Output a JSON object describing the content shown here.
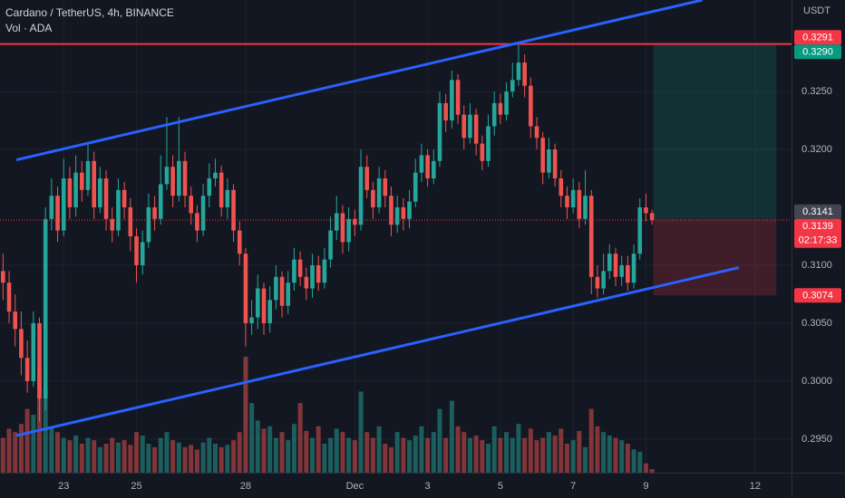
{
  "chart_data": {
    "type": "candlestick",
    "title": "Cardano / TetherUS, 4h, BINANCE",
    "volume_label": "Vol · ADA",
    "currency": "USDT",
    "up_color": "#26a69a",
    "down_color": "#ef5350",
    "open": [
      0.3095,
      0.3085,
      0.306,
      0.3045,
      0.302,
      0.3,
      0.305,
      0.2985,
      0.314,
      0.316,
      0.313,
      0.3175,
      0.315,
      0.318,
      0.3165,
      0.319,
      0.315,
      0.3175,
      0.314,
      0.313,
      0.3165,
      0.315,
      0.3125,
      0.31,
      0.312,
      0.315,
      0.314,
      0.317,
      0.3185,
      0.316,
      0.319,
      0.316,
      0.3145,
      0.313,
      0.316,
      0.3175,
      0.318,
      0.315,
      0.3165,
      0.313,
      0.311,
      0.305,
      0.3055,
      0.308,
      0.305,
      0.307,
      0.309,
      0.3065,
      0.3085,
      0.3105,
      0.309,
      0.308,
      0.31,
      0.3085,
      0.3105,
      0.313,
      0.3145,
      0.312,
      0.314,
      0.3135,
      0.3185,
      0.3165,
      0.315,
      0.3175,
      0.316,
      0.3135,
      0.315,
      0.314,
      0.3155,
      0.318,
      0.3195,
      0.3175,
      0.319,
      0.324,
      0.3225,
      0.326,
      0.323,
      0.321,
      0.323,
      0.3205,
      0.319,
      0.322,
      0.324,
      0.323,
      0.325,
      0.326,
      0.3275,
      0.3255,
      0.322,
      0.321,
      0.318,
      0.32,
      0.3175,
      0.316,
      0.315,
      0.3165,
      0.314,
      0.316,
      0.309,
      0.308,
      0.3095,
      0.311,
      0.309,
      0.31,
      0.3085,
      0.311,
      0.315,
      0.3145
    ],
    "high": [
      0.311,
      0.3095,
      0.3075,
      0.306,
      0.3035,
      0.306,
      0.3055,
      0.315,
      0.3175,
      0.3168,
      0.3192,
      0.3185,
      0.3195,
      0.319,
      0.3205,
      0.3198,
      0.3185,
      0.3182,
      0.315,
      0.3175,
      0.3172,
      0.3158,
      0.3132,
      0.313,
      0.3162,
      0.316,
      0.3195,
      0.3228,
      0.3195,
      0.3228,
      0.3198,
      0.3168,
      0.3152,
      0.317,
      0.3188,
      0.3192,
      0.3186,
      0.3175,
      0.317,
      0.3138,
      0.3115,
      0.307,
      0.3092,
      0.3085,
      0.3082,
      0.31,
      0.3095,
      0.3095,
      0.3115,
      0.3112,
      0.3098,
      0.311,
      0.3108,
      0.3115,
      0.3142,
      0.316,
      0.3152,
      0.315,
      0.3148,
      0.32,
      0.3195,
      0.3172,
      0.3185,
      0.3182,
      0.3168,
      0.316,
      0.3158,
      0.3165,
      0.3192,
      0.3205,
      0.32,
      0.32,
      0.325,
      0.3248,
      0.3268,
      0.3265,
      0.3238,
      0.324,
      0.3235,
      0.3212,
      0.323,
      0.325,
      0.3248,
      0.3258,
      0.3275,
      0.329,
      0.3282,
      0.3262,
      0.3228,
      0.3215,
      0.321,
      0.3205,
      0.3182,
      0.3168,
      0.3175,
      0.3172,
      0.3182,
      0.3165,
      0.31,
      0.311,
      0.3118,
      0.3115,
      0.3108,
      0.3108,
      0.3118,
      0.3158,
      0.3162,
      0.3148
    ],
    "low": [
      0.307,
      0.305,
      0.303,
      0.3005,
      0.299,
      0.2995,
      0.2965,
      0.2975,
      0.313,
      0.312,
      0.3125,
      0.314,
      0.3142,
      0.3155,
      0.316,
      0.314,
      0.3145,
      0.313,
      0.312,
      0.3125,
      0.314,
      0.3112,
      0.3085,
      0.3092,
      0.3115,
      0.313,
      0.3135,
      0.3165,
      0.315,
      0.3155,
      0.315,
      0.3135,
      0.312,
      0.3125,
      0.315,
      0.3168,
      0.3142,
      0.314,
      0.312,
      0.31,
      0.303,
      0.304,
      0.3045,
      0.304,
      0.3042,
      0.3062,
      0.3055,
      0.3058,
      0.3078,
      0.3082,
      0.307,
      0.3072,
      0.3078,
      0.308,
      0.3098,
      0.3122,
      0.311,
      0.3112,
      0.3125,
      0.313,
      0.3158,
      0.314,
      0.3145,
      0.315,
      0.3125,
      0.3128,
      0.313,
      0.3132,
      0.315,
      0.3172,
      0.3168,
      0.317,
      0.3185,
      0.3215,
      0.3218,
      0.3222,
      0.32,
      0.3205,
      0.3195,
      0.3182,
      0.3185,
      0.3212,
      0.3222,
      0.3225,
      0.3245,
      0.3255,
      0.3245,
      0.321,
      0.32,
      0.317,
      0.3175,
      0.3168,
      0.315,
      0.314,
      0.3145,
      0.3132,
      0.3135,
      0.3075,
      0.3072,
      0.3075,
      0.3088,
      0.3082,
      0.3082,
      0.3078,
      0.308,
      0.3105,
      0.3138,
      0.3135
    ],
    "close": [
      0.3085,
      0.306,
      0.3045,
      0.302,
      0.3,
      0.305,
      0.2985,
      0.314,
      0.316,
      0.313,
      0.3175,
      0.315,
      0.318,
      0.3165,
      0.319,
      0.315,
      0.3175,
      0.314,
      0.313,
      0.3165,
      0.315,
      0.3125,
      0.31,
      0.312,
      0.315,
      0.314,
      0.317,
      0.3185,
      0.316,
      0.319,
      0.316,
      0.3145,
      0.313,
      0.316,
      0.3175,
      0.318,
      0.315,
      0.3165,
      0.313,
      0.311,
      0.305,
      0.3055,
      0.308,
      0.305,
      0.307,
      0.309,
      0.3065,
      0.3085,
      0.3105,
      0.309,
      0.308,
      0.31,
      0.3085,
      0.3105,
      0.313,
      0.3145,
      0.312,
      0.314,
      0.3135,
      0.3185,
      0.3165,
      0.315,
      0.3175,
      0.316,
      0.3135,
      0.315,
      0.314,
      0.3155,
      0.318,
      0.3195,
      0.3175,
      0.319,
      0.324,
      0.3225,
      0.326,
      0.323,
      0.321,
      0.323,
      0.3205,
      0.319,
      0.322,
      0.324,
      0.323,
      0.325,
      0.326,
      0.3275,
      0.3255,
      0.322,
      0.321,
      0.318,
      0.32,
      0.3175,
      0.316,
      0.315,
      0.3165,
      0.314,
      0.316,
      0.309,
      0.308,
      0.3095,
      0.311,
      0.309,
      0.31,
      0.3085,
      0.311,
      0.315,
      0.3145,
      0.3139
    ],
    "volume": [
      30,
      38,
      35,
      42,
      55,
      50,
      88,
      72,
      40,
      35,
      30,
      28,
      32,
      25,
      30,
      28,
      22,
      25,
      30,
      26,
      28,
      24,
      35,
      32,
      25,
      22,
      30,
      35,
      28,
      26,
      22,
      24,
      20,
      26,
      30,
      25,
      22,
      24,
      28,
      35,
      100,
      60,
      45,
      38,
      40,
      30,
      35,
      28,
      42,
      60,
      36,
      30,
      40,
      25,
      30,
      38,
      35,
      30,
      28,
      70,
      35,
      30,
      40,
      25,
      22,
      35,
      30,
      28,
      32,
      40,
      30,
      35,
      55,
      30,
      62,
      40,
      35,
      30,
      32,
      28,
      25,
      40,
      30,
      35,
      30,
      42,
      30,
      38,
      28,
      30,
      35,
      32,
      38,
      25,
      28,
      36,
      22,
      55,
      40,
      35,
      32,
      30,
      28,
      25,
      20,
      18,
      8,
      3
    ],
    "xlim": [
      -0.5,
      130
    ],
    "xticks": [
      {
        "value": 10,
        "label": "23"
      },
      {
        "value": 22,
        "label": "25"
      },
      {
        "value": 40,
        "label": "28"
      },
      {
        "value": 58,
        "label": "Dec"
      },
      {
        "value": 70,
        "label": "3"
      },
      {
        "value": 82,
        "label": "5"
      },
      {
        "value": 94,
        "label": "7"
      },
      {
        "value": 106,
        "label": "9"
      },
      {
        "value": 124,
        "label": "12"
      }
    ],
    "ylim": [
      0.2921,
      0.3329
    ],
    "yticks": [
      {
        "value": 0.295,
        "label": "0.2950"
      },
      {
        "value": 0.3,
        "label": "0.3000"
      },
      {
        "value": 0.305,
        "label": "0.3050"
      },
      {
        "value": 0.31,
        "label": "0.3100"
      },
      {
        "value": 0.32,
        "label": "0.3200"
      },
      {
        "value": 0.325,
        "label": "0.3250"
      }
    ],
    "grid": true,
    "trendlines": [
      {
        "color": "#2962ff",
        "points": [
          [
            2.2,
            0.3191
          ],
          [
            115.3,
            0.3329
          ]
        ]
      },
      {
        "color": "#2962ff",
        "points": [
          [
            2.2,
            0.2953
          ],
          [
            121.3,
            0.3098
          ]
        ]
      }
    ],
    "hlines": [
      {
        "value": 0.3291,
        "color": "#f23645"
      }
    ],
    "position": {
      "entry": 0.314,
      "target": 0.329,
      "stop": 0.3074,
      "start": 107.2,
      "end": 127.5
    },
    "price_tags": [
      {
        "value": 0.3291,
        "label": "0.3291",
        "color": "#f23645"
      },
      {
        "value": 0.329,
        "label": "0.3290",
        "color": "#089981"
      },
      {
        "value": 0.3141,
        "label": "0.3141",
        "color": "#434651"
      },
      {
        "value": 0.3139,
        "label": "0.3139",
        "color": "#f23645",
        "countdown": "02:17:33"
      },
      {
        "value": 0.3074,
        "label": "0.3074",
        "color": "#f23645"
      }
    ]
  }
}
